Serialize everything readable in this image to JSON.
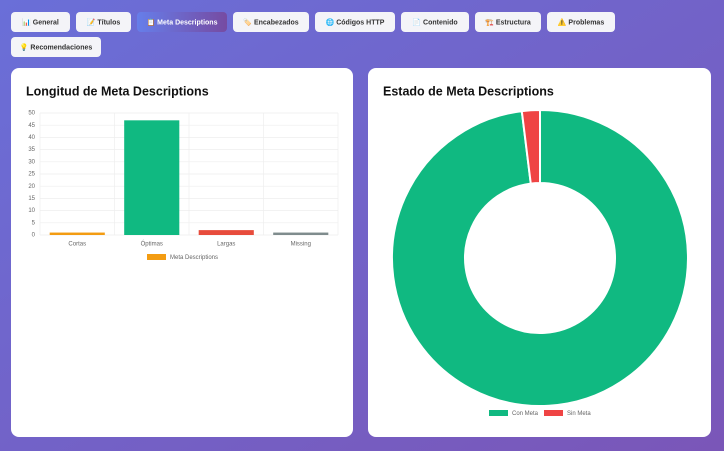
{
  "tabs": [
    "📊 General",
    "📝 Títulos",
    "📋 Meta Descriptions",
    "🏷️ Encabezados",
    "🌐 Códigos HTTP",
    "📄 Contenido",
    "🏗️ Estructura",
    "⚠️ Problemas",
    "💡 Recomendaciones"
  ],
  "chart_data": [
    {
      "type": "bar",
      "title": "Longitud de Meta Descriptions",
      "categories": [
        "Cortas",
        "Óptimas",
        "Largas",
        "Missing"
      ],
      "series": [
        {
          "name": "Meta Descriptions",
          "color": "#f39c12",
          "colors": [
            "#f39c12",
            "#10b981",
            "#e74c3c",
            "#7f8c8d"
          ],
          "values": [
            1,
            47,
            2,
            1
          ]
        }
      ],
      "ylim": [
        0,
        50
      ],
      "yticks": [
        0,
        5,
        10,
        15,
        20,
        25,
        30,
        35,
        40,
        45,
        50
      ],
      "grid": true,
      "legend": "top"
    },
    {
      "type": "doughnut",
      "title": "Estado de Meta Descriptions",
      "categories": [
        "Con Meta",
        "Sin Meta"
      ],
      "values": [
        50,
        1
      ],
      "colors": [
        "#10b981",
        "#ef4444"
      ],
      "legend": "bottom"
    }
  ]
}
